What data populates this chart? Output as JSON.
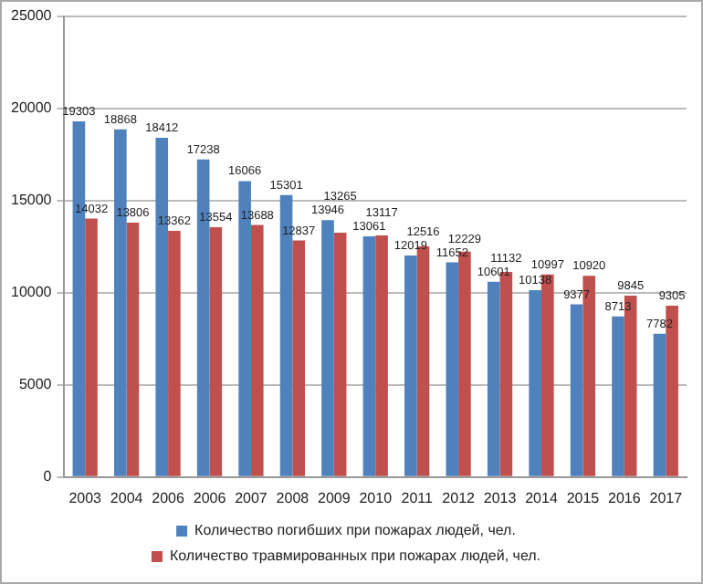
{
  "chart_data": {
    "type": "bar",
    "categories": [
      "2003",
      "2004",
      "2006",
      "2006",
      "2007",
      "2008",
      "2009",
      "2010",
      "2011",
      "2012",
      "2013",
      "2014",
      "2015",
      "2016",
      "2017"
    ],
    "series": [
      {
        "name": "Количество погибших при пожарах людей, чел.",
        "color": "#4f81bd",
        "values": [
          19303,
          18868,
          18412,
          17238,
          16066,
          15301,
          13946,
          13061,
          12019,
          11652,
          10601,
          10138,
          9377,
          8713,
          7782
        ]
      },
      {
        "name": "Количество травмированных при пожарах людей, чел.",
        "color": "#c0504d",
        "values": [
          14032,
          13806,
          13362,
          13554,
          13688,
          12837,
          13265,
          13117,
          12516,
          12229,
          11132,
          10997,
          10920,
          9845,
          9305
        ]
      }
    ],
    "ylim": [
      0,
      25000
    ],
    "yticks": [
      0,
      5000,
      10000,
      15000,
      20000,
      25000
    ],
    "grid": "y",
    "legend": "bottom",
    "data_labels": true
  }
}
